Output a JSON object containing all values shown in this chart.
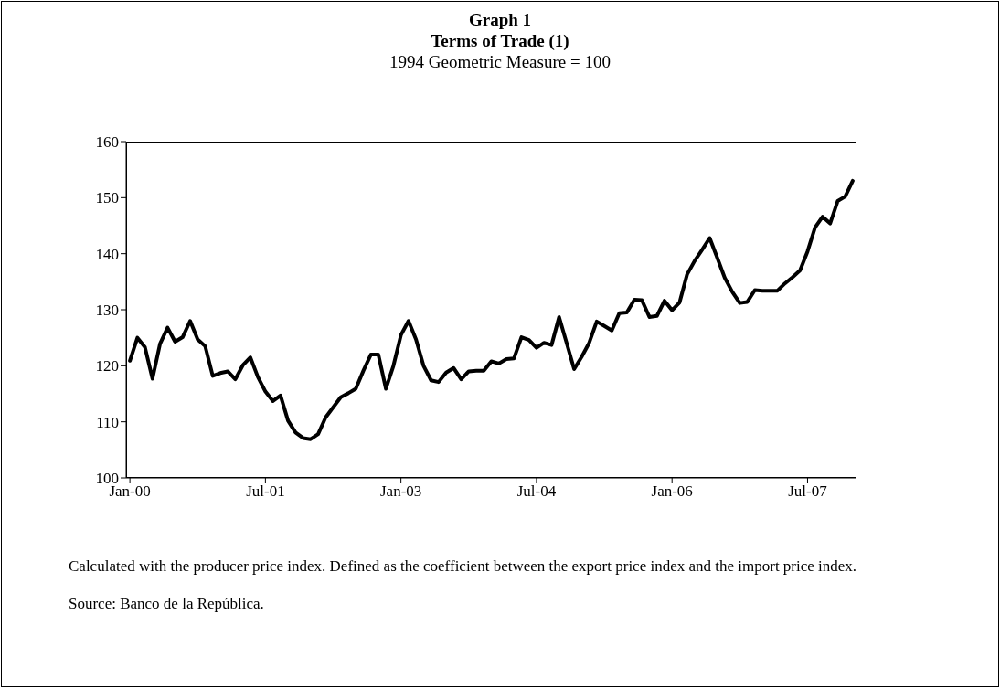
{
  "chart_data": {
    "type": "line",
    "title": "Graph 1\nTerms of Trade (1)",
    "subtitle": "1994 Geometric Measure = 100",
    "categories": [
      "Jan-00",
      null,
      null,
      null,
      null,
      null,
      null,
      null,
      null,
      null,
      null,
      null,
      null,
      null,
      null,
      null,
      null,
      null,
      "Jul-01",
      null,
      null,
      null,
      null,
      null,
      null,
      null,
      null,
      null,
      null,
      null,
      null,
      null,
      null,
      null,
      null,
      null,
      "Jan-03",
      null,
      null,
      null,
      null,
      null,
      null,
      null,
      null,
      null,
      null,
      null,
      null,
      null,
      null,
      null,
      null,
      null,
      "Jul-04",
      null,
      null,
      null,
      null,
      null,
      null,
      null,
      null,
      null,
      null,
      null,
      null,
      null,
      null,
      null,
      null,
      null,
      "Jan-06",
      null,
      null,
      null,
      null,
      null,
      null,
      null,
      null,
      null,
      null,
      null,
      null,
      null,
      null,
      null,
      null,
      null,
      "Jul-07",
      null,
      null,
      null,
      null,
      null,
      null
    ],
    "series": [
      {
        "color": "#000000",
        "values": [
          120.9,
          125.0,
          123.3,
          117.7,
          123.9,
          126.8,
          124.3,
          125.1,
          128.0,
          124.7,
          123.5,
          118.2,
          118.7,
          119.0,
          117.6,
          120.1,
          121.5,
          118.0,
          115.4,
          113.7,
          114.7,
          110.2,
          108.1,
          107.1,
          106.9,
          107.8,
          110.8,
          112.6,
          114.4,
          115.1,
          115.9,
          119.1,
          122.0,
          122.0,
          115.9,
          120.0,
          125.5,
          128.0,
          124.7,
          120.0,
          117.4,
          117.1,
          118.8,
          119.6,
          117.6,
          119.0,
          119.1,
          119.1,
          120.8,
          120.4,
          121.2,
          121.3,
          125.1,
          124.6,
          123.2,
          124.1,
          123.7,
          128.7,
          124.1,
          119.4,
          121.6,
          124.1,
          127.9,
          127.1,
          126.3,
          129.4,
          129.5,
          131.8,
          131.7,
          128.7,
          128.9,
          131.6,
          129.9,
          131.3,
          136.3,
          138.7,
          140.7,
          142.8,
          139.3,
          135.7,
          133.2,
          131.2,
          131.4,
          133.5,
          133.4,
          133.4,
          133.4,
          134.7,
          135.8,
          137.0,
          140.4,
          144.7,
          146.6,
          145.4,
          149.4,
          150.2,
          153.0
        ]
      }
    ],
    "ylim": [
      100,
      160
    ],
    "yticks": [
      100,
      110,
      120,
      130,
      140,
      150,
      160
    ],
    "grid": false,
    "legend": false,
    "marker": "none",
    "line_style": "solid",
    "annotations": [
      "Calculated with the producer price index. Defined as the coefficient between the export price index and the import price index.",
      "Source: Banco de la República."
    ]
  }
}
